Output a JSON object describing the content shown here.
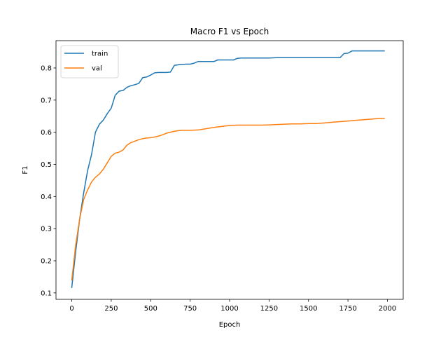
{
  "chart_data": {
    "type": "line",
    "title": "Macro F1 vs Epoch",
    "xlabel": "Epoch",
    "ylabel": "F1",
    "xlim": [
      -100,
      2100
    ],
    "ylim": [
      0.08,
      0.885
    ],
    "xticks": [
      0,
      250,
      500,
      750,
      1000,
      1250,
      1500,
      1750,
      2000
    ],
    "xtick_labels": [
      "0",
      "250",
      "500",
      "750",
      "1000",
      "1250",
      "1500",
      "1750",
      "2000"
    ],
    "yticks": [
      0.1,
      0.2,
      0.3,
      0.4,
      0.5,
      0.6,
      0.7,
      0.8
    ],
    "ytick_labels": [
      "0.1",
      "0.2",
      "0.3",
      "0.4",
      "0.5",
      "0.6",
      "0.7",
      "0.8"
    ],
    "grid": false,
    "legend_position": "top-left",
    "series": [
      {
        "name": "train",
        "color": "#1f77b4",
        "x": [
          0,
          25,
          50,
          75,
          100,
          125,
          150,
          175,
          200,
          225,
          250,
          275,
          300,
          325,
          350,
          375,
          400,
          425,
          450,
          475,
          500,
          525,
          550,
          575,
          600,
          625,
          650,
          675,
          700,
          725,
          750,
          775,
          800,
          825,
          850,
          875,
          900,
          925,
          950,
          975,
          1000,
          1025,
          1050,
          1075,
          1100,
          1150,
          1200,
          1250,
          1300,
          1350,
          1400,
          1450,
          1500,
          1550,
          1600,
          1650,
          1700,
          1725,
          1750,
          1775,
          1800,
          1850,
          1900,
          1950,
          1980
        ],
        "values": [
          0.117,
          0.23,
          0.33,
          0.41,
          0.48,
          0.53,
          0.6,
          0.625,
          0.638,
          0.658,
          0.675,
          0.715,
          0.728,
          0.73,
          0.74,
          0.745,
          0.748,
          0.752,
          0.77,
          0.772,
          0.778,
          0.785,
          0.786,
          0.786,
          0.786,
          0.787,
          0.808,
          0.81,
          0.811,
          0.812,
          0.812,
          0.815,
          0.82,
          0.82,
          0.82,
          0.82,
          0.82,
          0.825,
          0.825,
          0.825,
          0.825,
          0.825,
          0.83,
          0.831,
          0.831,
          0.831,
          0.831,
          0.831,
          0.832,
          0.832,
          0.832,
          0.832,
          0.832,
          0.832,
          0.832,
          0.832,
          0.832,
          0.845,
          0.846,
          0.853,
          0.853,
          0.853,
          0.853,
          0.853,
          0.853
        ]
      },
      {
        "name": "val",
        "color": "#ff7f0e",
        "x": [
          0,
          25,
          50,
          75,
          100,
          125,
          150,
          175,
          200,
          225,
          250,
          275,
          300,
          325,
          350,
          375,
          400,
          425,
          450,
          475,
          500,
          525,
          550,
          575,
          600,
          625,
          650,
          675,
          700,
          750,
          800,
          850,
          900,
          950,
          1000,
          1050,
          1100,
          1150,
          1200,
          1250,
          1300,
          1350,
          1400,
          1450,
          1500,
          1550,
          1600,
          1650,
          1700,
          1750,
          1800,
          1850,
          1900,
          1950,
          1980
        ],
        "values": [
          0.14,
          0.25,
          0.33,
          0.39,
          0.42,
          0.445,
          0.46,
          0.47,
          0.485,
          0.505,
          0.525,
          0.535,
          0.538,
          0.545,
          0.56,
          0.568,
          0.572,
          0.577,
          0.58,
          0.582,
          0.583,
          0.585,
          0.588,
          0.592,
          0.597,
          0.6,
          0.603,
          0.605,
          0.606,
          0.606,
          0.607,
          0.611,
          0.615,
          0.618,
          0.621,
          0.622,
          0.622,
          0.622,
          0.622,
          0.623,
          0.624,
          0.625,
          0.626,
          0.626,
          0.627,
          0.627,
          0.629,
          0.631,
          0.633,
          0.635,
          0.637,
          0.639,
          0.641,
          0.643,
          0.643
        ]
      }
    ]
  }
}
